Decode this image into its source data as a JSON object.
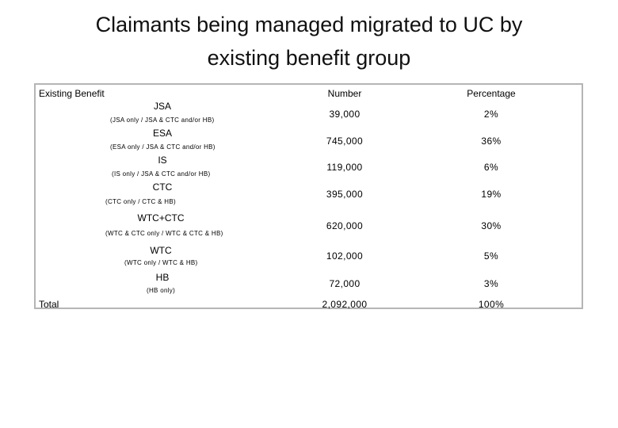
{
  "title": {
    "line1": "Claimants being managed migrated to UC by",
    "line2": "existing benefit group"
  },
  "table": {
    "headers": {
      "benefit": "Existing Benefit",
      "number": "Number",
      "percentage": "Percentage"
    },
    "rows": [
      {
        "name": "JSA",
        "sub": "(JSA only / JSA & CTC and/or HB)",
        "number": "39,000",
        "percentage": "2%"
      },
      {
        "name": "ESA",
        "sub": "(ESA only / JSA & CTC and/or HB)",
        "number": "745,000",
        "percentage": "36%"
      },
      {
        "name": "IS",
        "sub": "(IS only / JSA & CTC and/or HB)",
        "number": "119,000",
        "percentage": "6%"
      },
      {
        "name": "CTC",
        "sub": "(CTC only / CTC & HB)",
        "number": "395,000",
        "percentage": "19%"
      },
      {
        "name": "WTC+CTC",
        "sub": "(WTC & CTC only / WTC & CTC & HB)",
        "number": "620,000",
        "percentage": "30%"
      },
      {
        "name": "WTC",
        "sub": "(WTC only / WTC & HB)",
        "number": "102,000",
        "percentage": "5%"
      },
      {
        "name": "HB",
        "sub": "(HB only)",
        "number": "72,000",
        "percentage": "3%"
      }
    ],
    "total": {
      "label": "Total",
      "number": "2,092,000",
      "percentage": "100%"
    }
  }
}
